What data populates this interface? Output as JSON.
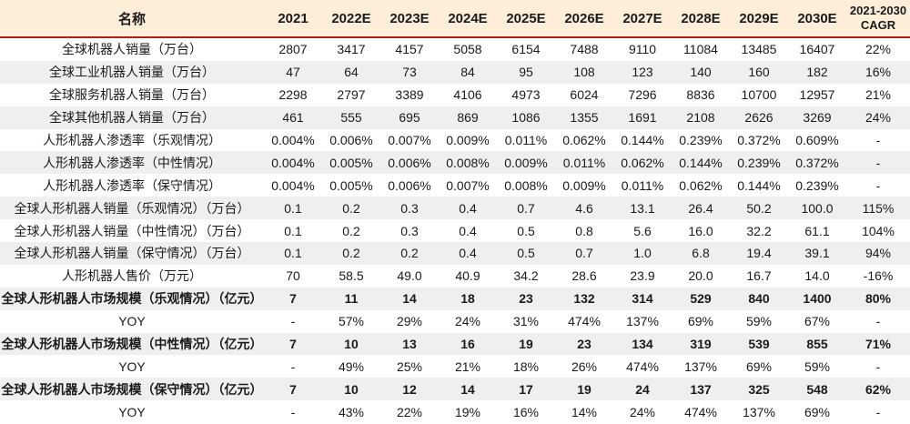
{
  "colors": {
    "header_bg": "#fdeeda",
    "divider_red": "#a82017",
    "row_alt_bg": "#efefef",
    "text": "#1a1a1a"
  },
  "chart_data": {
    "type": "table",
    "name_header": "名称",
    "year_columns": [
      "2021",
      "2022E",
      "2023E",
      "2024E",
      "2025E",
      "2026E",
      "2027E",
      "2028E",
      "2029E",
      "2030E"
    ],
    "cagr_header": {
      "line1": "2021-2030",
      "line2": "CAGR"
    },
    "rows": [
      {
        "label": "全球机器人销量（万台）",
        "values": [
          "2807",
          "3417",
          "4157",
          "5058",
          "6154",
          "7488",
          "9110",
          "11084",
          "13485",
          "16407"
        ],
        "cagr": "22%",
        "bold": false
      },
      {
        "label": "全球工业机器人销量（万台）",
        "values": [
          "47",
          "64",
          "73",
          "84",
          "95",
          "108",
          "123",
          "140",
          "160",
          "182"
        ],
        "cagr": "16%",
        "bold": false
      },
      {
        "label": "全球服务机器人销量（万台）",
        "values": [
          "2298",
          "2797",
          "3389",
          "4106",
          "4973",
          "6024",
          "7296",
          "8836",
          "10700",
          "12957"
        ],
        "cagr": "21%",
        "bold": false
      },
      {
        "label": "全球其他机器人销量（万台）",
        "values": [
          "461",
          "555",
          "695",
          "869",
          "1086",
          "1355",
          "1691",
          "2108",
          "2626",
          "3269"
        ],
        "cagr": "24%",
        "bold": false
      },
      {
        "label": "人形机器人渗透率（乐观情况）",
        "values": [
          "0.004%",
          "0.006%",
          "0.007%",
          "0.009%",
          "0.011%",
          "0.062%",
          "0.144%",
          "0.239%",
          "0.372%",
          "0.609%"
        ],
        "cagr": "-",
        "bold": false
      },
      {
        "label": "人形机器人渗透率（中性情况）",
        "values": [
          "0.004%",
          "0.005%",
          "0.006%",
          "0.008%",
          "0.009%",
          "0.011%",
          "0.062%",
          "0.144%",
          "0.239%",
          "0.372%"
        ],
        "cagr": "-",
        "bold": false
      },
      {
        "label": "人形机器人渗透率（保守情况）",
        "values": [
          "0.004%",
          "0.005%",
          "0.006%",
          "0.007%",
          "0.008%",
          "0.009%",
          "0.011%",
          "0.062%",
          "0.144%",
          "0.239%"
        ],
        "cagr": "-",
        "bold": false
      },
      {
        "label": "全球人形机器人销量（乐观情况）（万台）",
        "values": [
          "0.1",
          "0.2",
          "0.3",
          "0.4",
          "0.7",
          "4.6",
          "13.1",
          "26.4",
          "50.2",
          "100.0"
        ],
        "cagr": "115%",
        "bold": false
      },
      {
        "label": "全球人形机器人销量（中性情况）（万台）",
        "values": [
          "0.1",
          "0.2",
          "0.3",
          "0.4",
          "0.5",
          "0.8",
          "5.6",
          "16.0",
          "32.2",
          "61.1"
        ],
        "cagr": "104%",
        "bold": false
      },
      {
        "label": "全球人形机器人销量（保守情况）（万台）",
        "values": [
          "0.1",
          "0.2",
          "0.2",
          "0.4",
          "0.5",
          "0.7",
          "1.0",
          "6.8",
          "19.4",
          "39.1"
        ],
        "cagr": "94%",
        "bold": false
      },
      {
        "label": "人形机器人售价（万元）",
        "values": [
          "70",
          "58.5",
          "49.0",
          "40.9",
          "34.2",
          "28.6",
          "23.9",
          "20.0",
          "16.7",
          "14.0"
        ],
        "cagr": "-16%",
        "bold": false
      },
      {
        "label": "全球人形机器人市场规模（乐观情况）（亿元）",
        "values": [
          "7",
          "11",
          "14",
          "18",
          "23",
          "132",
          "314",
          "529",
          "840",
          "1400"
        ],
        "cagr": "80%",
        "bold": true
      },
      {
        "label": "YOY",
        "values": [
          "-",
          "57%",
          "29%",
          "24%",
          "31%",
          "474%",
          "137%",
          "69%",
          "59%",
          "67%"
        ],
        "cagr": "-",
        "bold": false
      },
      {
        "label": "全球人形机器人市场规模（中性情况）（亿元）",
        "values": [
          "7",
          "10",
          "13",
          "16",
          "19",
          "23",
          "134",
          "319",
          "539",
          "855"
        ],
        "cagr": "71%",
        "bold": true
      },
      {
        "label": "YOY",
        "values": [
          "-",
          "49%",
          "25%",
          "21%",
          "18%",
          "26%",
          "474%",
          "137%",
          "69%",
          "59%"
        ],
        "cagr": "-",
        "bold": false
      },
      {
        "label": "全球人形机器人市场规模（保守情况）（亿元）",
        "values": [
          "7",
          "10",
          "12",
          "14",
          "17",
          "19",
          "24",
          "137",
          "325",
          "548"
        ],
        "cagr": "62%",
        "bold": true
      },
      {
        "label": "YOY",
        "values": [
          "-",
          "43%",
          "22%",
          "19%",
          "16%",
          "14%",
          "24%",
          "474%",
          "137%",
          "69%"
        ],
        "cagr": "-",
        "bold": false
      }
    ]
  }
}
